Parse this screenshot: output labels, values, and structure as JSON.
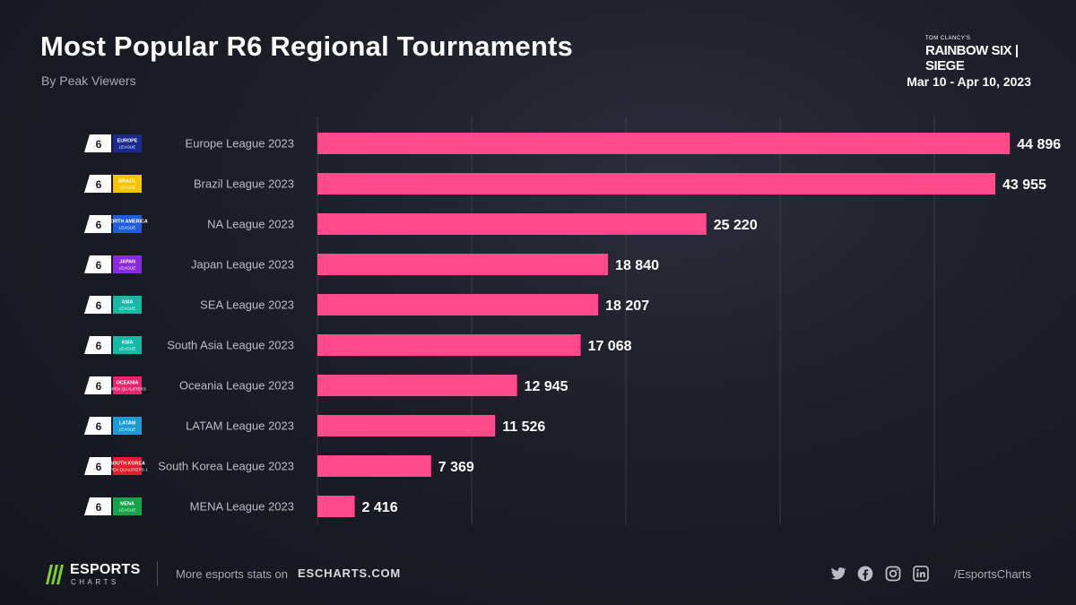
{
  "header": {
    "title": "Most Popular R6 Regional Tournaments",
    "subtitle": "By Peak Viewers",
    "date_range": "Mar 10 - Apr 10, 2023",
    "brand_top": "TOM CLANCY'S",
    "brand_main": "RAINBOW SIX | SIEGE"
  },
  "footer": {
    "logo_name": "ESPORTS",
    "logo_sub": "CHARTS",
    "more_text": "More esports stats on",
    "site": "ESCHARTS.COM",
    "handle": "/EsportsCharts",
    "icons": [
      "twitter-icon",
      "facebook-icon",
      "instagram-icon",
      "linkedin-icon"
    ]
  },
  "colors": {
    "bar": "#ff4b8b",
    "accent_green": "#7ed321"
  },
  "chart_data": {
    "type": "bar",
    "orientation": "horizontal",
    "categories": [
      "Europe League 2023",
      "Brazil League 2023",
      "NA League 2023",
      "Japan League 2023",
      "SEA League 2023",
      "South Asia League 2023",
      "Oceania League 2023",
      "LATAM League 2023",
      "South Korea League 2023",
      "MENA League 2023"
    ],
    "values": [
      44896,
      43955,
      25220,
      18840,
      18207,
      17068,
      12945,
      11526,
      7369,
      2416
    ],
    "value_labels": [
      "44 896",
      "43 955",
      "25 220",
      "18 840",
      "18 207",
      "17 068",
      "12 945",
      "11 526",
      "7 369",
      "2 416"
    ],
    "xlim": [
      0,
      50000
    ],
    "grid": true,
    "badges": [
      {
        "line1": "EUROPE",
        "line2": "LEAGUE",
        "color": "#1a2a8c"
      },
      {
        "line1": "BRAZIL",
        "line2": "LEAGUE",
        "color": "#f2c500"
      },
      {
        "line1": "NORTH AMERICA",
        "line2": "LEAGUE",
        "color": "#1f5ed8"
      },
      {
        "line1": "JAPAN",
        "line2": "LEAGUE",
        "color": "#8a2be2"
      },
      {
        "line1": "ASIA",
        "line2": "LEAGUE",
        "color": "#17b8a6"
      },
      {
        "line1": "ASIA",
        "line2": "LEAGUE",
        "color": "#17b8a6"
      },
      {
        "line1": "OCEANIA",
        "line2": "OPEN QUALIFIERS",
        "color": "#e8246e"
      },
      {
        "line1": "LATAM",
        "line2": "LEAGUE",
        "color": "#1e9ad6"
      },
      {
        "line1": "SOUTH KOREA",
        "line2": "OPEN QUALIFIERS 1",
        "color": "#e01e2c"
      },
      {
        "line1": "MENA",
        "line2": "LEAGUE",
        "color": "#17a34a"
      }
    ]
  }
}
